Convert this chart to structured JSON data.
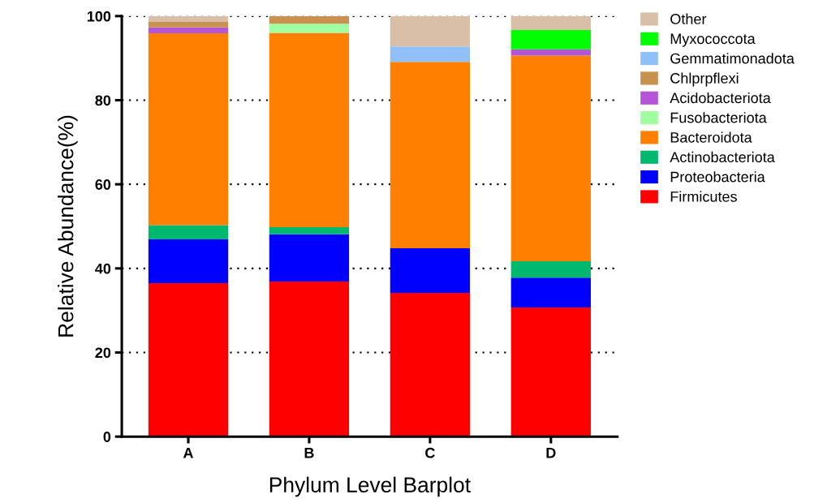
{
  "chart_data": {
    "type": "bar",
    "stacked": true,
    "xlabel": "Phylum Level Barplot",
    "ylabel": "Relative Abundance(%)",
    "categories": [
      "A",
      "B",
      "C",
      "D"
    ],
    "series": [
      {
        "name": "Firmicutes",
        "color": "#ff0000",
        "values": [
          36.5,
          36.9,
          34.2,
          30.7
        ]
      },
      {
        "name": "Proteobacteria",
        "color": "#0000ff",
        "values": [
          10.4,
          11.2,
          10.6,
          7.1
        ]
      },
      {
        "name": "Actinobacteriota",
        "color": "#00b86e",
        "values": [
          3.4,
          1.7,
          0,
          3.9
        ]
      },
      {
        "name": "Bacteroidota",
        "color": "#ff8000",
        "values": [
          45.6,
          46.2,
          44.3,
          48.9
        ]
      },
      {
        "name": "Fusobacteriota",
        "color": "#a0ffa0",
        "values": [
          0,
          2.2,
          0,
          0
        ]
      },
      {
        "name": "Acidobacteriota",
        "color": "#b455d8",
        "values": [
          1.4,
          0,
          0,
          1.5
        ]
      },
      {
        "name": "Chlprpflexi",
        "color": "#c8914f",
        "values": [
          1.3,
          1.8,
          0,
          0
        ]
      },
      {
        "name": "Gemmatimonadota",
        "color": "#90c0f8",
        "values": [
          0,
          0,
          3.7,
          0
        ]
      },
      {
        "name": "Myxococcota",
        "color": "#00ff00",
        "values": [
          0,
          0,
          0,
          4.6
        ]
      },
      {
        "name": "Other",
        "color": "#d9bfa8",
        "values": [
          1.4,
          0,
          7.2,
          3.3
        ]
      }
    ],
    "ylim": [
      0,
      100
    ],
    "yticks": [
      0,
      20,
      40,
      60,
      80,
      100
    ],
    "grid": "y",
    "legend": "right"
  }
}
